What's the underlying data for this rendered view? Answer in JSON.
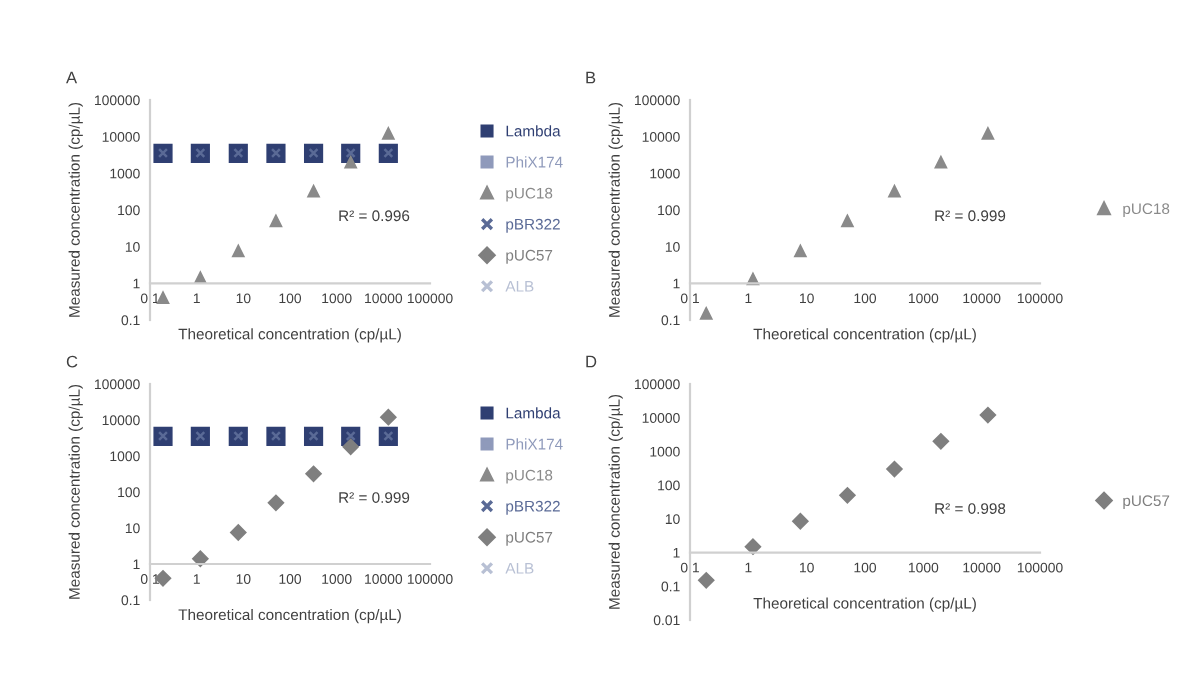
{
  "chart_data": [
    {
      "type": "scatter",
      "title": "A",
      "xlabel": "Theoretical concentration (cp/µL)",
      "ylabel": "Measured concentration (cp/µL)",
      "log": "xy",
      "legend": "right",
      "x": [
        0.19,
        1.2,
        7.8,
        50,
        320,
        2000,
        12800
      ],
      "xlim": [
        0.1,
        100000
      ],
      "ylim": [
        0.1,
        100000
      ],
      "xticks": [
        0.1,
        1,
        10,
        100,
        1000,
        10000,
        100000
      ],
      "yticks": [
        0.1,
        1,
        10,
        100,
        1000,
        10000,
        100000
      ],
      "series": [
        {
          "name": "Lambda",
          "color": "#2f3f72",
          "marker": "square",
          "values": [
            3500,
            3500,
            3500,
            3500,
            3500,
            3500,
            3500
          ]
        },
        {
          "name": "PhiX174",
          "color": "#8f9abb",
          "marker": "square",
          "values": [
            null,
            null,
            null,
            null,
            null,
            null,
            null
          ]
        },
        {
          "name": "pUC18",
          "color": "#8a8a8a",
          "marker": "triangle",
          "values": [
            0.4,
            1.4,
            7.5,
            50,
            320,
            2000,
            12000
          ]
        },
        {
          "name": "pBR322",
          "color": "#5a6a96",
          "marker": "cross",
          "values": [
            3600,
            3600,
            3600,
            3600,
            3600,
            3600,
            3600
          ]
        },
        {
          "name": "pUC57",
          "color": "#7f7f7f",
          "marker": "diamond",
          "values": [
            null,
            null,
            null,
            null,
            null,
            null,
            null
          ]
        },
        {
          "name": "ALB",
          "color": "#b8c0d4",
          "marker": "cross",
          "values": [
            null,
            null,
            null,
            null,
            null,
            null,
            null
          ]
        }
      ],
      "annotations": [
        "R² = 0.996"
      ]
    },
    {
      "type": "scatter",
      "title": "B",
      "xlabel": "Theoretical concentration (cp/µL)",
      "ylabel": "Measured concentration (cp/µL)",
      "log": "xy",
      "legend": "right",
      "x": [
        0.19,
        1.2,
        7.8,
        50,
        320,
        2000,
        12800
      ],
      "xlim": [
        0.1,
        100000
      ],
      "ylim": [
        0.1,
        100000
      ],
      "xticks": [
        0.1,
        1,
        10,
        100,
        1000,
        10000,
        100000
      ],
      "yticks": [
        0.1,
        1,
        10,
        100,
        1000,
        10000,
        100000
      ],
      "series": [
        {
          "name": "pUC18",
          "color": "#8a8a8a",
          "marker": "triangle",
          "values": [
            0.15,
            1.3,
            7.5,
            50,
            320,
            2000,
            12000
          ]
        }
      ],
      "annotations": [
        "R² = 0.999"
      ]
    },
    {
      "type": "scatter",
      "title": "C",
      "xlabel": "Theoretical concentration (cp/µL)",
      "ylabel": "Measured concentration (cp/µL)",
      "log": "xy",
      "legend": "right",
      "x": [
        0.19,
        1.2,
        7.8,
        50,
        320,
        2000,
        12800
      ],
      "xlim": [
        0.1,
        100000
      ],
      "ylim": [
        0.1,
        100000
      ],
      "xticks": [
        0.1,
        1,
        10,
        100,
        1000,
        10000,
        100000
      ],
      "yticks": [
        0.1,
        1,
        10,
        100,
        1000,
        10000,
        100000
      ],
      "series": [
        {
          "name": "Lambda",
          "color": "#2f3f72",
          "marker": "square",
          "values": [
            3500,
            3500,
            3500,
            3500,
            3500,
            3500,
            3500
          ]
        },
        {
          "name": "PhiX174",
          "color": "#8f9abb",
          "marker": "square",
          "values": [
            null,
            null,
            null,
            null,
            null,
            null,
            null
          ]
        },
        {
          "name": "pUC18",
          "color": "#8a8a8a",
          "marker": "triangle",
          "values": [
            null,
            null,
            null,
            null,
            null,
            null,
            null
          ]
        },
        {
          "name": "pBR322",
          "color": "#5a6a96",
          "marker": "cross",
          "values": [
            3600,
            3600,
            3600,
            3600,
            3600,
            3600,
            3600
          ]
        },
        {
          "name": "pUC57",
          "color": "#7f7f7f",
          "marker": "diamond",
          "values": [
            0.4,
            1.4,
            7.5,
            50,
            320,
            1800,
            12000
          ]
        },
        {
          "name": "ALB",
          "color": "#b8c0d4",
          "marker": "cross",
          "values": [
            null,
            null,
            null,
            null,
            null,
            null,
            null
          ]
        }
      ],
      "annotations": [
        "R² = 0.999"
      ]
    },
    {
      "type": "scatter",
      "title": "D",
      "xlabel": "Theoretical concentration (cp/µL)",
      "ylabel": "Measured concentration (cp/µL)",
      "log": "xy",
      "legend": "right",
      "x": [
        0.19,
        1.2,
        7.8,
        50,
        320,
        2000,
        12800
      ],
      "xlim": [
        0.1,
        100000
      ],
      "ylim": [
        0.01,
        100000
      ],
      "xticks": [
        0.1,
        1,
        10,
        100,
        1000,
        10000,
        100000
      ],
      "yticks": [
        0.01,
        0.1,
        1,
        10,
        100,
        1000,
        10000,
        100000
      ],
      "series": [
        {
          "name": "pUC57",
          "color": "#7f7f7f",
          "marker": "diamond",
          "values": [
            0.15,
            1.5,
            8.5,
            50,
            300,
            2000,
            12000
          ]
        }
      ],
      "annotations": [
        "R² = 0.998"
      ]
    }
  ]
}
